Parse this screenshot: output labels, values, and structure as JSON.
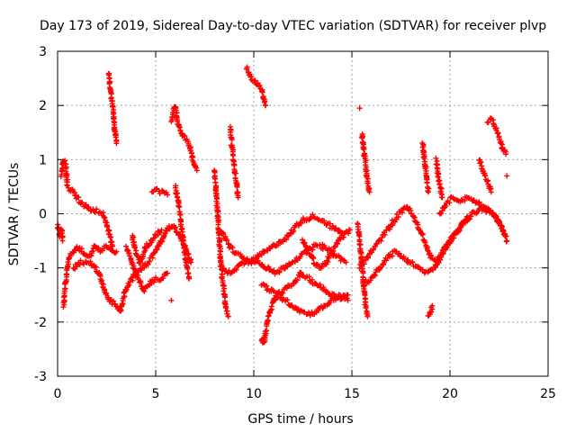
{
  "chart_data": {
    "type": "scatter",
    "title": "Day 173 of 2019, Sidereal Day-to-day VTEC variation (SDTVAR) for receiver plvp",
    "xlabel": "GPS time / hours",
    "ylabel": "SDTVAR / TECUs",
    "xlim": [
      0,
      25
    ],
    "ylim": [
      -3,
      3
    ],
    "xticks": [
      0,
      5,
      10,
      15,
      20,
      25
    ],
    "yticks": [
      -3,
      -2,
      -1,
      0,
      1,
      2,
      3
    ],
    "grid": true,
    "marker": "plus",
    "color": "#ff0000",
    "series": [
      {
        "name": "plvp",
        "segments": [
          [
            [
              0.0,
              -0.2
            ],
            [
              0.1,
              -0.4
            ],
            [
              0.2,
              -0.3
            ],
            [
              0.25,
              -0.5
            ]
          ],
          [
            [
              0.2,
              0.7
            ],
            [
              0.3,
              1.0
            ],
            [
              0.4,
              0.9
            ],
            [
              0.5,
              0.5
            ],
            [
              0.8,
              0.4
            ],
            [
              1.2,
              0.2
            ],
            [
              1.6,
              0.1
            ],
            [
              2.0,
              0.05
            ],
            [
              2.3,
              0.0
            ],
            [
              2.5,
              -0.2
            ],
            [
              2.8,
              -0.6
            ]
          ],
          [
            [
              0.3,
              -1.7
            ],
            [
              0.4,
              -1.3
            ],
            [
              0.5,
              -1.0
            ],
            [
              0.6,
              -0.8
            ],
            [
              0.8,
              -0.7
            ],
            [
              1.0,
              -0.6
            ],
            [
              1.3,
              -0.7
            ],
            [
              1.6,
              -0.8
            ],
            [
              1.9,
              -0.6
            ],
            [
              2.2,
              -0.7
            ],
            [
              2.5,
              -0.6
            ],
            [
              2.8,
              -0.7
            ],
            [
              3.0,
              -0.7
            ]
          ],
          [
            [
              0.8,
              -1.0
            ],
            [
              1.2,
              -0.9
            ],
            [
              1.6,
              -0.9
            ],
            [
              1.9,
              -1.0
            ],
            [
              2.1,
              -1.1
            ],
            [
              2.3,
              -1.3
            ],
            [
              2.5,
              -1.5
            ],
            [
              2.7,
              -1.6
            ],
            [
              3.0,
              -1.7
            ],
            [
              3.2,
              -1.8
            ]
          ],
          [
            [
              2.6,
              2.6
            ],
            [
              2.7,
              2.3
            ],
            [
              2.8,
              2.0
            ],
            [
              2.9,
              1.6
            ],
            [
              3.0,
              1.3
            ]
          ],
          [
            [
              3.2,
              -1.8
            ],
            [
              3.4,
              -1.5
            ],
            [
              3.6,
              -1.3
            ],
            [
              3.8,
              -1.2
            ],
            [
              4.0,
              -1.1
            ],
            [
              4.3,
              -1.0
            ],
            [
              4.6,
              -0.9
            ],
            [
              5.0,
              -0.7
            ],
            [
              5.3,
              -0.5
            ],
            [
              5.6,
              -0.3
            ],
            [
              5.9,
              -0.2
            ],
            [
              6.2,
              -0.4
            ],
            [
              6.5,
              -0.6
            ],
            [
              6.8,
              -0.9
            ]
          ],
          [
            [
              3.5,
              -0.6
            ],
            [
              3.7,
              -0.8
            ],
            [
              3.9,
              -1.0
            ],
            [
              4.1,
              -1.2
            ],
            [
              4.4,
              -1.4
            ],
            [
              4.7,
              -1.3
            ],
            [
              5.0,
              -1.2
            ],
            [
              5.3,
              -1.2
            ],
            [
              5.6,
              -1.1
            ]
          ],
          [
            [
              3.8,
              -0.4
            ],
            [
              4.0,
              -0.7
            ],
            [
              4.2,
              -0.9
            ],
            [
              4.5,
              -0.6
            ],
            [
              4.8,
              -0.5
            ],
            [
              5.0,
              -0.4
            ],
            [
              5.3,
              -0.3
            ]
          ],
          [
            [
              4.8,
              0.4
            ],
            [
              5.0,
              0.45
            ],
            [
              5.3,
              0.4
            ],
            [
              5.6,
              0.35
            ]
          ],
          [
            [
              5.8,
              1.7
            ],
            [
              5.9,
              1.9
            ],
            [
              6.0,
              2.0
            ],
            [
              6.1,
              1.7
            ],
            [
              6.3,
              1.5
            ],
            [
              6.5,
              1.4
            ],
            [
              6.7,
              1.3
            ],
            [
              6.9,
              1.0
            ],
            [
              7.1,
              0.8
            ]
          ],
          [
            [
              6.0,
              0.5
            ],
            [
              6.1,
              0.3
            ],
            [
              6.2,
              0.1
            ],
            [
              6.3,
              -0.2
            ],
            [
              6.4,
              -0.5
            ],
            [
              6.5,
              -0.8
            ],
            [
              6.6,
              -1.0
            ],
            [
              6.7,
              -1.2
            ]
          ],
          [
            [
              5.8,
              -1.6
            ]
          ],
          [
            [
              8.0,
              0.8
            ],
            [
              8.1,
              0.3
            ],
            [
              8.2,
              -0.2
            ],
            [
              8.3,
              -0.8
            ],
            [
              8.4,
              -1.2
            ],
            [
              8.5,
              -1.5
            ],
            [
              8.6,
              -1.8
            ],
            [
              8.7,
              -1.9
            ]
          ],
          [
            [
              8.3,
              -0.3
            ],
            [
              8.6,
              -0.5
            ],
            [
              9.0,
              -0.7
            ],
            [
              9.4,
              -0.8
            ],
            [
              9.8,
              -0.9
            ],
            [
              10.2,
              -0.8
            ],
            [
              10.6,
              -0.7
            ],
            [
              11.0,
              -0.6
            ],
            [
              11.4,
              -0.5
            ],
            [
              11.8,
              -0.4
            ],
            [
              12.2,
              -0.2
            ],
            [
              12.6,
              -0.1
            ],
            [
              13.0,
              -0.05
            ],
            [
              13.4,
              -0.1
            ],
            [
              13.8,
              -0.2
            ],
            [
              14.2,
              -0.3
            ],
            [
              14.6,
              -0.35
            ]
          ],
          [
            [
              8.3,
              -1.0
            ],
            [
              8.7,
              -1.1
            ],
            [
              9.1,
              -1.0
            ],
            [
              9.5,
              -0.9
            ],
            [
              9.9,
              -0.85
            ],
            [
              10.3,
              -0.9
            ],
            [
              10.7,
              -1.0
            ],
            [
              11.1,
              -1.1
            ],
            [
              11.5,
              -1.0
            ],
            [
              11.9,
              -0.9
            ],
            [
              12.3,
              -0.8
            ],
            [
              12.7,
              -0.7
            ],
            [
              13.1,
              -0.6
            ],
            [
              13.5,
              -0.6
            ],
            [
              13.9,
              -0.7
            ],
            [
              14.3,
              -0.8
            ],
            [
              14.7,
              -0.9
            ]
          ],
          [
            [
              8.8,
              1.6
            ],
            [
              8.9,
              1.2
            ],
            [
              9.0,
              0.9
            ],
            [
              9.1,
              0.6
            ],
            [
              9.2,
              0.3
            ]
          ],
          [
            [
              9.6,
              2.7
            ],
            [
              9.8,
              2.55
            ],
            [
              10.0,
              2.45
            ],
            [
              10.2,
              2.4
            ],
            [
              10.4,
              2.3
            ],
            [
              10.6,
              2.0
            ]
          ],
          [
            [
              10.4,
              -2.3
            ],
            [
              10.5,
              -2.4
            ],
            [
              10.6,
              -2.2
            ],
            [
              10.7,
              -2.0
            ],
            [
              10.9,
              -1.7
            ],
            [
              11.2,
              -1.5
            ],
            [
              11.6,
              -1.4
            ],
            [
              12.0,
              -1.3
            ],
            [
              12.4,
              -1.1
            ],
            [
              12.8,
              -1.2
            ],
            [
              13.2,
              -1.3
            ],
            [
              13.6,
              -1.4
            ],
            [
              14.0,
              -1.5
            ],
            [
              14.4,
              -1.55
            ],
            [
              14.8,
              -1.5
            ]
          ],
          [
            [
              10.4,
              -1.3
            ],
            [
              10.8,
              -1.4
            ],
            [
              11.2,
              -1.5
            ],
            [
              11.6,
              -1.6
            ],
            [
              12.0,
              -1.7
            ],
            [
              12.4,
              -1.8
            ],
            [
              12.8,
              -1.85
            ],
            [
              13.2,
              -1.8
            ],
            [
              13.6,
              -1.7
            ],
            [
              14.0,
              -1.6
            ],
            [
              14.4,
              -1.5
            ],
            [
              14.8,
              -1.6
            ]
          ],
          [
            [
              12.5,
              -0.5
            ],
            [
              12.8,
              -0.7
            ],
            [
              13.1,
              -0.9
            ],
            [
              13.4,
              -1.0
            ],
            [
              13.7,
              -0.9
            ],
            [
              14.0,
              -0.7
            ],
            [
              14.3,
              -0.5
            ],
            [
              14.6,
              -0.4
            ],
            [
              14.9,
              -0.3
            ]
          ],
          [
            [
              15.3,
              -0.2
            ],
            [
              15.4,
              -0.5
            ],
            [
              15.5,
              -0.9
            ],
            [
              15.6,
              -1.3
            ],
            [
              15.7,
              -1.7
            ],
            [
              15.8,
              -1.9
            ]
          ],
          [
            [
              15.5,
              1.5
            ],
            [
              15.6,
              1.2
            ],
            [
              15.7,
              0.9
            ],
            [
              15.8,
              0.6
            ],
            [
              15.9,
              0.4
            ]
          ],
          [
            [
              15.4,
              1.95
            ]
          ],
          [
            [
              15.4,
              -1.0
            ],
            [
              15.8,
              -0.8
            ],
            [
              16.2,
              -0.6
            ],
            [
              16.6,
              -0.4
            ],
            [
              17.0,
              -0.2
            ],
            [
              17.4,
              0.0
            ],
            [
              17.8,
              0.15
            ],
            [
              18.2,
              -0.1
            ],
            [
              18.6,
              -0.4
            ],
            [
              19.0,
              -0.8
            ],
            [
              19.4,
              -0.9
            ],
            [
              19.8,
              -0.6
            ],
            [
              20.2,
              -0.4
            ],
            [
              20.6,
              -0.2
            ],
            [
              21.0,
              -0.1
            ]
          ],
          [
            [
              15.6,
              -1.3
            ],
            [
              16.0,
              -1.2
            ],
            [
              16.4,
              -1.0
            ],
            [
              16.8,
              -0.8
            ],
            [
              17.2,
              -0.7
            ],
            [
              17.6,
              -0.8
            ],
            [
              18.0,
              -0.9
            ],
            [
              18.4,
              -1.0
            ],
            [
              18.8,
              -1.1
            ],
            [
              19.2,
              -1.0
            ],
            [
              19.6,
              -0.7
            ],
            [
              20.0,
              -0.5
            ],
            [
              20.4,
              -0.3
            ],
            [
              20.8,
              -0.1
            ],
            [
              21.2,
              0.0
            ],
            [
              21.6,
              0.1
            ],
            [
              22.0,
              0.05
            ],
            [
              22.4,
              -0.1
            ],
            [
              22.8,
              -0.4
            ]
          ],
          [
            [
              18.6,
              1.3
            ],
            [
              18.7,
              1.0
            ],
            [
              18.8,
              0.7
            ],
            [
              18.9,
              0.4
            ]
          ],
          [
            [
              19.3,
              1.0
            ],
            [
              19.4,
              0.7
            ],
            [
              19.5,
              0.5
            ],
            [
              19.6,
              0.3
            ]
          ],
          [
            [
              18.9,
              -1.9
            ],
            [
              19.0,
              -1.8
            ],
            [
              19.1,
              -1.7
            ]
          ],
          [
            [
              19.5,
              0.0
            ],
            [
              19.8,
              0.2
            ],
            [
              20.2,
              0.3
            ],
            [
              20.6,
              0.25
            ],
            [
              21.0,
              0.3
            ],
            [
              21.4,
              0.2
            ],
            [
              21.8,
              0.1
            ],
            [
              22.2,
              0.0
            ],
            [
              22.6,
              -0.2
            ],
            [
              22.9,
              -0.5
            ]
          ],
          [
            [
              21.5,
              1.0
            ],
            [
              21.7,
              0.8
            ],
            [
              21.9,
              0.6
            ],
            [
              22.1,
              0.4
            ]
          ],
          [
            [
              21.9,
              1.7
            ],
            [
              22.1,
              1.75
            ],
            [
              22.3,
              1.6
            ],
            [
              22.5,
              1.4
            ],
            [
              22.7,
              1.2
            ],
            [
              22.85,
              1.1
            ]
          ],
          [
            [
              22.9,
              0.7
            ]
          ]
        ]
      }
    ]
  }
}
